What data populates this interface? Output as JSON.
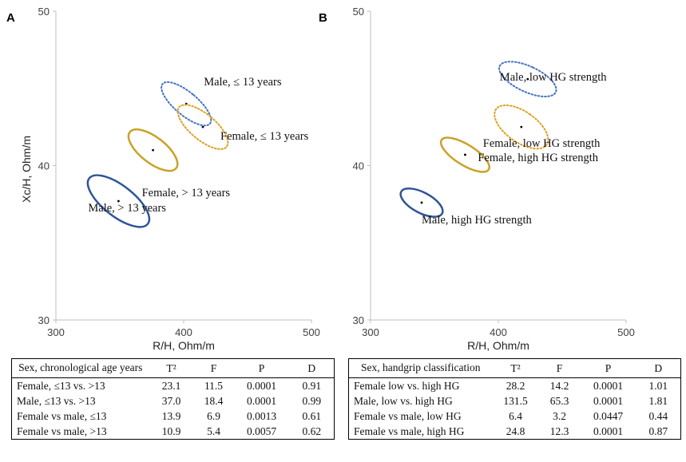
{
  "panels": [
    {
      "letter": "A",
      "chart_data": {
        "type": "scatter",
        "xlabel": "R/H, Ohm/m",
        "ylabel": "Xc/H, Ohm/m",
        "xlim": [
          300,
          500
        ],
        "ylim": [
          30,
          50
        ],
        "xticks": [
          "300",
          "400",
          "500"
        ],
        "yticks": [
          "30",
          "40",
          "50"
        ],
        "grid": false,
        "series": [
          {
            "name": "Male, ≤ 13 years",
            "color": "#4472C4",
            "style": "dotted",
            "center": [
              402,
              44.0
            ],
            "rx": 9,
            "ry": 2.0,
            "rotation": 50
          },
          {
            "name": "Female, ≤ 13 years",
            "color": "#E0A020",
            "style": "dotted",
            "center": [
              415,
              42.5
            ],
            "rx": 10,
            "ry": 2.0,
            "rotation": 50
          },
          {
            "name": "Female, > 13 years",
            "color": "#C9A227",
            "style": "solid",
            "center": [
              376,
              41.0
            ],
            "rx": 10,
            "ry": 1.9,
            "rotation": 52
          },
          {
            "name": "Male, > 13 years",
            "color": "#2F5597",
            "style": "solid",
            "center": [
              349,
              37.7
            ],
            "rx": 12,
            "ry": 2.4,
            "rotation": 52
          }
        ]
      },
      "table": {
        "headers": [
          "Sex, chronological age years",
          "T²",
          "F",
          "P",
          "D"
        ],
        "rows": [
          [
            "Female, ≤13 vs. >13",
            "23.1",
            "11.5",
            "0.0001",
            "0.91"
          ],
          [
            "Male, ≤13 vs. >13",
            "37.0",
            "18.4",
            "0.0001",
            "0.99"
          ],
          [
            "Female vs male, ≤13",
            "13.9",
            "6.9",
            "0.0013",
            "0.61"
          ],
          [
            "Female vs male, >13",
            "10.9",
            "5.4",
            "0.0057",
            "0.62"
          ]
        ]
      }
    },
    {
      "letter": "B",
      "chart_data": {
        "type": "scatter",
        "xlabel": "R/H, Ohm/m",
        "ylabel": "",
        "xlim": [
          300,
          500
        ],
        "ylim": [
          30,
          50
        ],
        "xticks": [
          "300",
          "400",
          "500"
        ],
        "yticks": [
          "30",
          "40",
          "50"
        ],
        "grid": false,
        "series": [
          {
            "name": "Male, low HG strength",
            "color": "#4472C4",
            "style": "dotted",
            "center": [
              423,
              45.6
            ],
            "rx": 10,
            "ry": 2.0,
            "rotation": 65
          },
          {
            "name": "Female, low HG strength",
            "color": "#E0A020",
            "style": "dotted",
            "center": [
              418,
              42.5
            ],
            "rx": 12,
            "ry": 2.0,
            "rotation": 55
          },
          {
            "name": "Female, high HG strength",
            "color": "#C9A227",
            "style": "solid",
            "center": [
              374,
              40.7
            ],
            "rx": 8,
            "ry": 1.8,
            "rotation": 58
          },
          {
            "name": "Male, high HG strength",
            "color": "#2F5597",
            "style": "solid",
            "center": [
              340,
              37.6
            ],
            "rx": 8,
            "ry": 1.5,
            "rotation": 62
          }
        ]
      },
      "table": {
        "headers": [
          "Sex, handgrip classification",
          "T²",
          "F",
          "P",
          "D"
        ],
        "rows": [
          [
            "Female low vs. high HG",
            "28.2",
            "14.2",
            "0.0001",
            "1.01"
          ],
          [
            "Male, low vs. high HG",
            "131.5",
            "65.3",
            "0.0001",
            "1.81"
          ],
          [
            "Female vs male, low HG",
            "6.4",
            "3.2",
            "0.0447",
            "0.44"
          ],
          [
            "Female vs male, high HG",
            "24.8",
            "12.3",
            "0.0001",
            "0.87"
          ]
        ]
      }
    }
  ]
}
